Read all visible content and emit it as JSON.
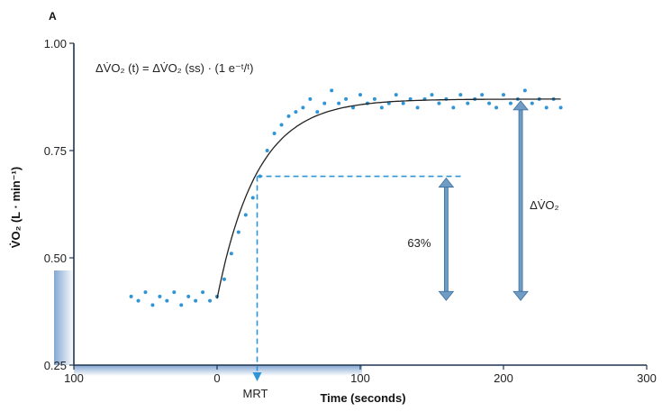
{
  "chart_data": {
    "type": "line",
    "panel_label": "A",
    "equation": "ΔV̇O₂ (t) = ΔV̇O₂ (ss) · (1   e⁻ᵗ/ᵗ)",
    "xlabel": "Time (seconds)",
    "ylabel": "V̇O₂ (L · min⁻¹)",
    "xlim": [
      -100,
      300
    ],
    "ylim": [
      0.25,
      1.0
    ],
    "x_ticks": [
      -100,
      0,
      100,
      200,
      300
    ],
    "x_tick_labels": [
      "100",
      "0",
      "100",
      "200",
      "300"
    ],
    "y_ticks": [
      0.25,
      0.5,
      0.75,
      1.0
    ],
    "y_tick_labels": [
      "0.25",
      "0.50",
      "0.75",
      "1.00"
    ],
    "grid": false,
    "model": {
      "baseline": 0.405,
      "steady_state": 0.87,
      "onset": 0,
      "tau": 28,
      "end": 240
    },
    "series": [
      {
        "kind": "measured",
        "x": [
          -60,
          -55,
          -50,
          -45,
          -40,
          -35,
          -30,
          -25,
          -20,
          -15,
          -10,
          -5,
          0,
          5,
          10,
          15,
          20,
          25,
          30,
          35,
          40,
          45,
          50,
          55,
          60,
          65,
          70,
          75,
          80,
          85,
          90,
          95,
          100,
          105,
          110,
          115,
          120,
          125,
          130,
          135,
          140,
          145,
          150,
          155,
          160,
          165,
          170,
          175,
          180,
          185,
          190,
          195,
          200,
          205,
          210,
          215,
          220,
          225,
          230,
          235,
          240
        ],
        "y": [
          0.41,
          0.4,
          0.42,
          0.39,
          0.41,
          0.4,
          0.42,
          0.39,
          0.41,
          0.4,
          0.42,
          0.4,
          0.41,
          0.45,
          0.51,
          0.56,
          0.6,
          0.64,
          0.69,
          0.75,
          0.79,
          0.81,
          0.83,
          0.84,
          0.85,
          0.87,
          0.84,
          0.86,
          0.89,
          0.86,
          0.87,
          0.85,
          0.88,
          0.86,
          0.87,
          0.85,
          0.86,
          0.88,
          0.86,
          0.87,
          0.85,
          0.87,
          0.88,
          0.86,
          0.87,
          0.85,
          0.88,
          0.86,
          0.87,
          0.88,
          0.86,
          0.85,
          0.88,
          0.86,
          0.87,
          0.89,
          0.86,
          0.87,
          0.85,
          0.87,
          0.85
        ]
      }
    ],
    "annotations": {
      "mrt_label": "MRT",
      "mrt_x": 28,
      "level_63_y": 0.69,
      "level_63_x_end": 172,
      "pct_label": "63%",
      "pct_arrow_x": 160,
      "delta_label": "ΔV̇O₂",
      "delta_arrow_x": 212
    },
    "colors": {
      "data": "#2f95d6",
      "fit": "#222222",
      "arrow": "#6f9cc4",
      "arrow_outline": "#3d6f9e",
      "axis": "#1f3550"
    }
  }
}
